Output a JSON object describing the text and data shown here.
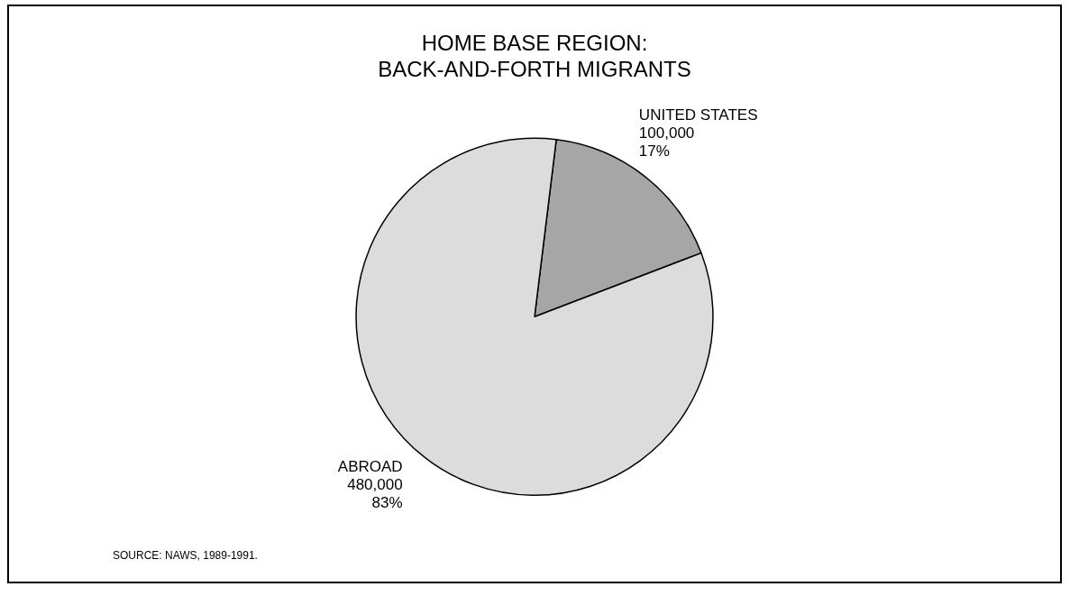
{
  "chart_data": {
    "type": "pie",
    "title": "HOME BASE REGION:\nBACK-AND-FORTH MIGRANTS",
    "categories": [
      "UNITED STATES",
      "ABROAD"
    ],
    "values": [
      100000,
      480000
    ],
    "value_labels": [
      "100,000\n17%",
      "480,000\n83%"
    ],
    "colors": [
      "#a6a6a6",
      "#dcdcdc"
    ],
    "annotations": [
      "SOURCE: NAWS, 1989-1991."
    ],
    "legend": false
  }
}
